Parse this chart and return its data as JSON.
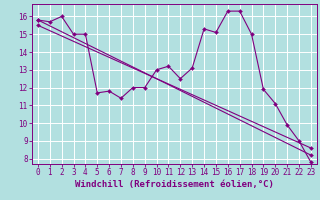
{
  "xlabel": "Windchill (Refroidissement éolien,°C)",
  "bg_color": "#b2e0e0",
  "line_color": "#800080",
  "grid_color": "#ffffff",
  "xlim": [
    -0.5,
    23.5
  ],
  "ylim": [
    7.7,
    16.7
  ],
  "yticks": [
    8,
    9,
    10,
    11,
    12,
    13,
    14,
    15,
    16
  ],
  "xticks": [
    0,
    1,
    2,
    3,
    4,
    5,
    6,
    7,
    8,
    9,
    10,
    11,
    12,
    13,
    14,
    15,
    16,
    17,
    18,
    19,
    20,
    21,
    22,
    23
  ],
  "series1_x": [
    0,
    1,
    2,
    3,
    4,
    5,
    6,
    7,
    8,
    9,
    10,
    11,
    12,
    13,
    14,
    15,
    16,
    17,
    18,
    19,
    20,
    21,
    22,
    23
  ],
  "series1_y": [
    15.8,
    15.7,
    16.0,
    15.0,
    15.0,
    11.7,
    11.8,
    11.4,
    12.0,
    12.0,
    13.0,
    13.2,
    12.5,
    13.1,
    15.3,
    15.1,
    16.3,
    16.3,
    15.0,
    11.9,
    11.1,
    9.9,
    9.0,
    7.8
  ],
  "series2_x": [
    0,
    23
  ],
  "series2_y": [
    15.8,
    8.2
  ],
  "series3_x": [
    0,
    23
  ],
  "series3_y": [
    15.5,
    8.6
  ],
  "markersize": 2.0,
  "linewidth": 0.8,
  "xlabel_fontsize": 6.5,
  "tick_fontsize": 5.5
}
